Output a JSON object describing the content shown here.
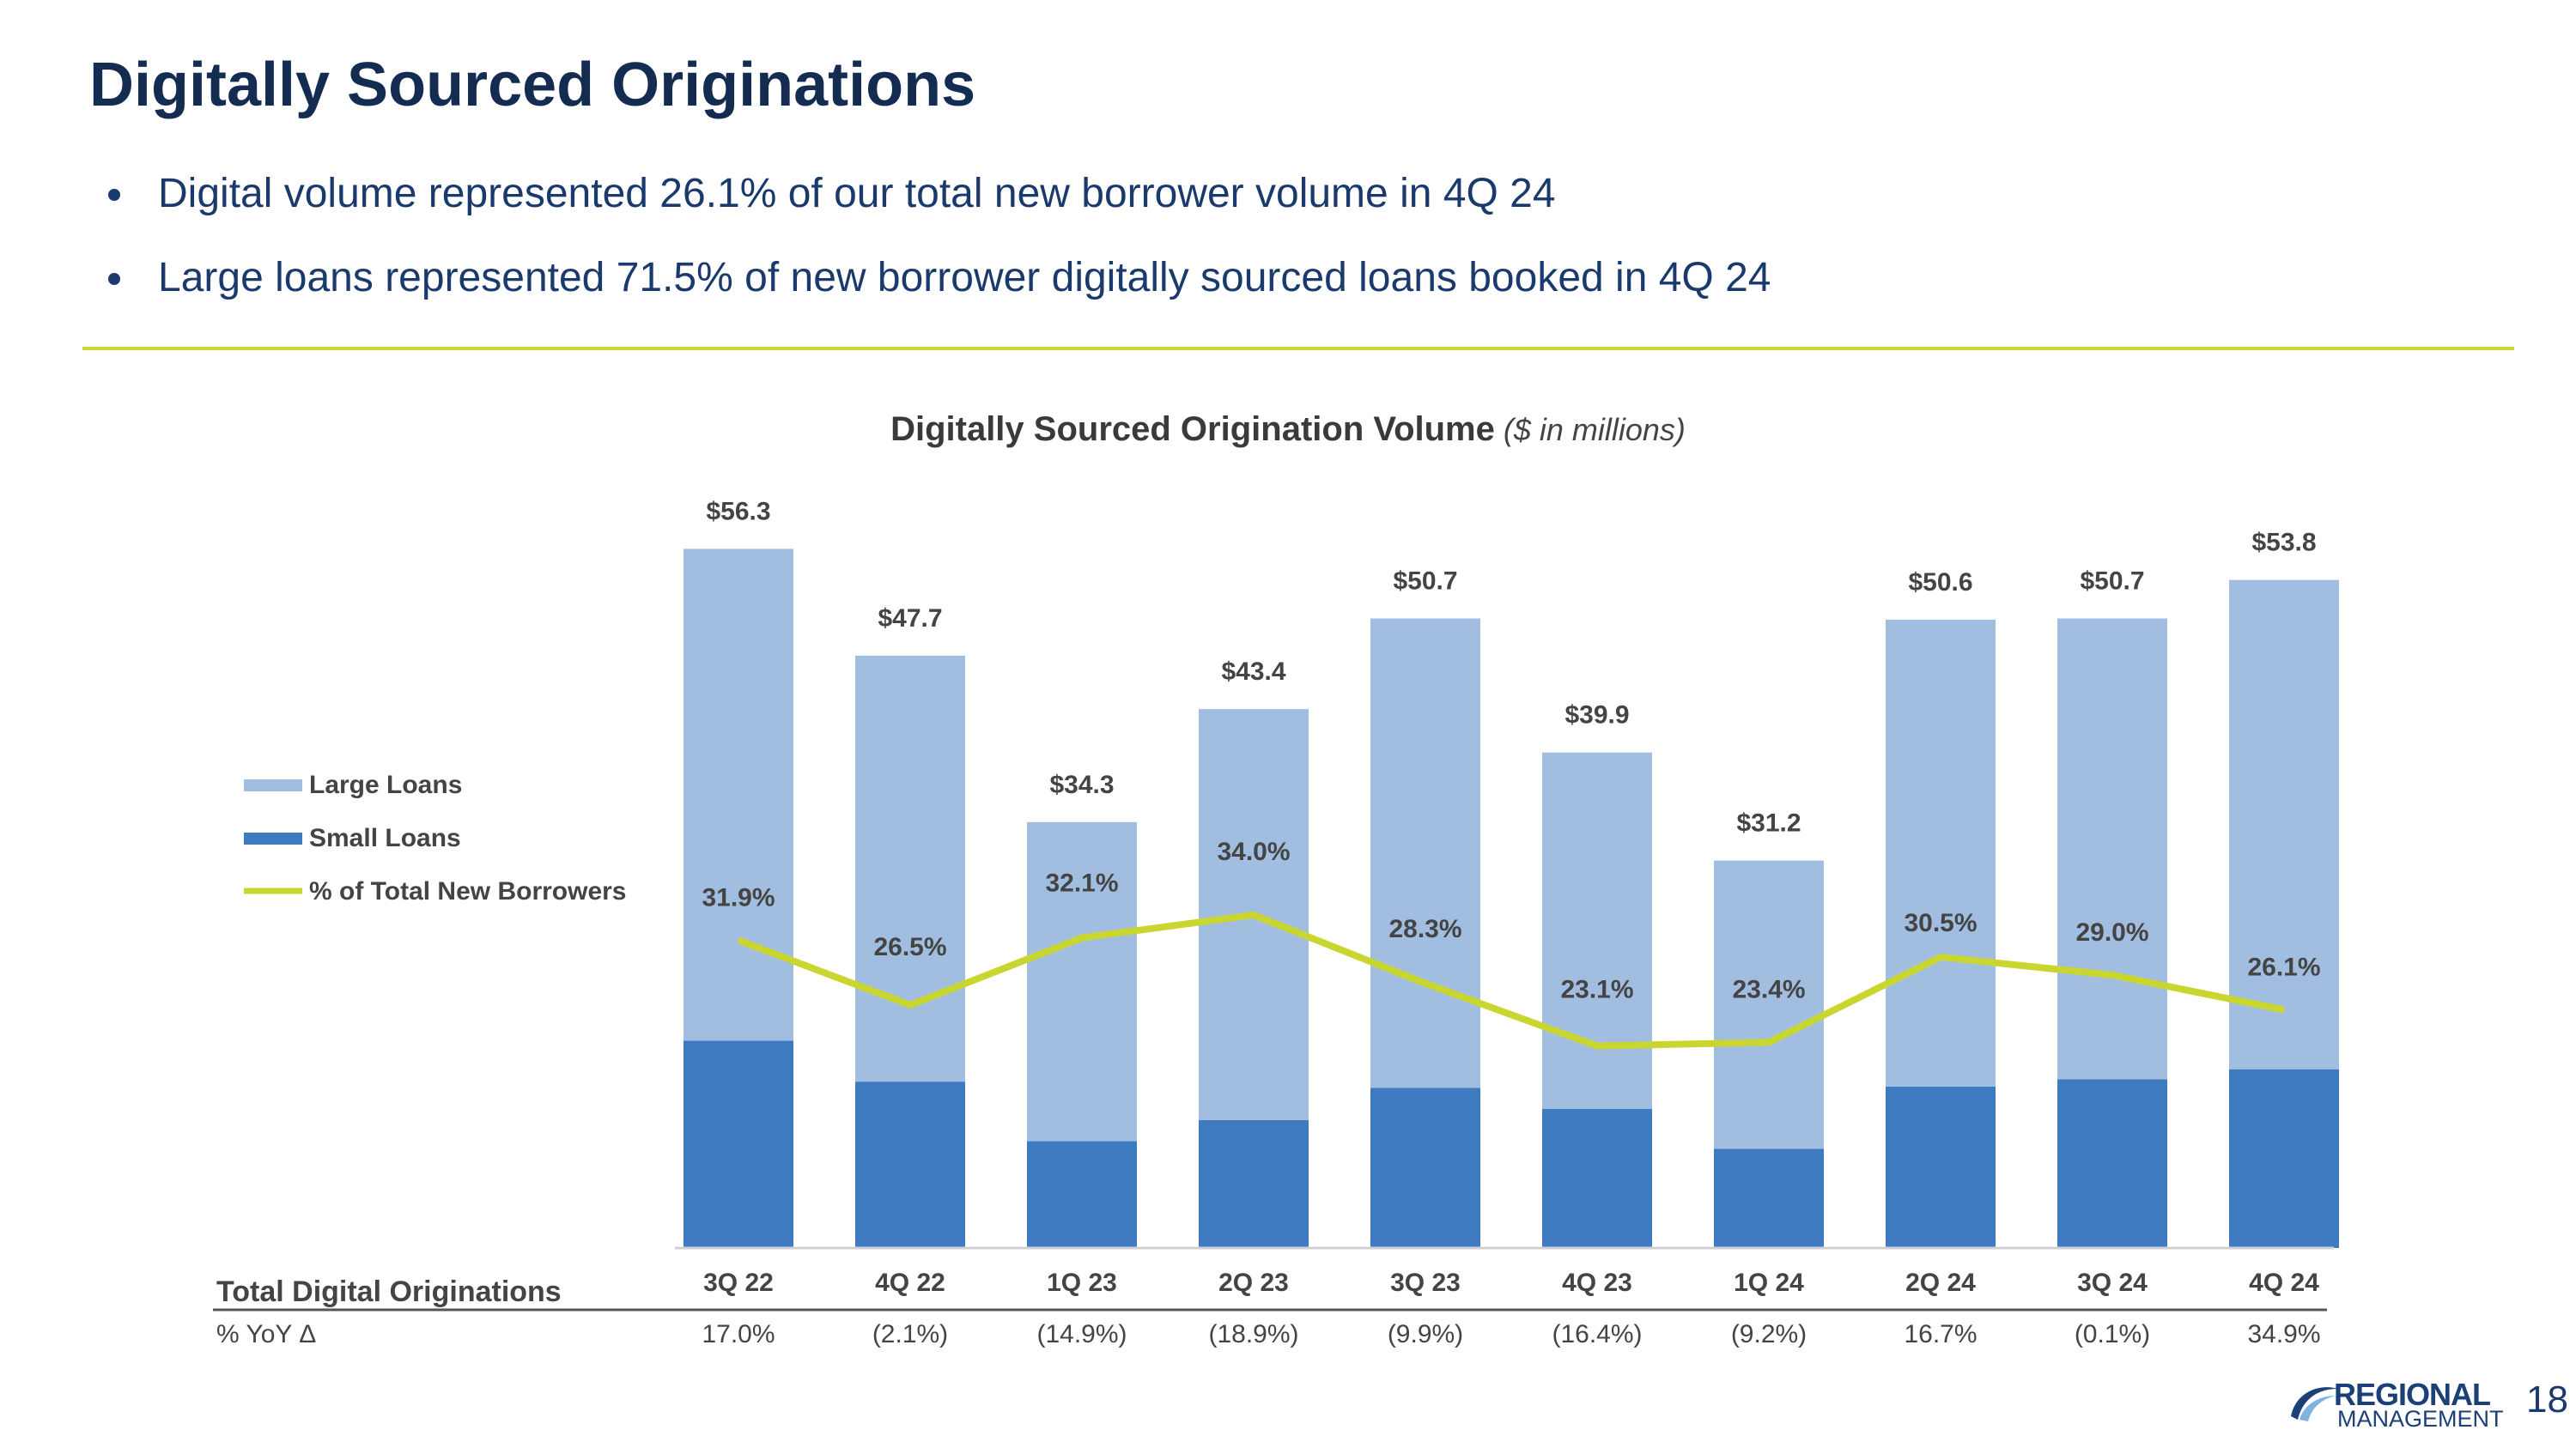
{
  "header": {
    "title": "Digitally Sourced Originations",
    "bullets": [
      "Digital volume represented 26.1% of our total new borrower volume in 4Q 24",
      "Large loans represented 71.5% of new borrower digitally sourced loans booked in 4Q 24"
    ]
  },
  "chart_title": {
    "main": "Digitally Sourced Origination Volume",
    "unit": "($ in millions)"
  },
  "chart_data": {
    "type": "bar",
    "stacked": true,
    "categories": [
      "3Q 22",
      "4Q 22",
      "1Q 23",
      "2Q 23",
      "3Q 23",
      "4Q 23",
      "1Q 24",
      "2Q 24",
      "3Q 24",
      "4Q 24"
    ],
    "series": [
      {
        "name": "Small Loans",
        "values": [
          16.7,
          13.4,
          8.6,
          10.3,
          12.9,
          11.2,
          8.0,
          13.0,
          13.6,
          14.4
        ],
        "color": "#3f7bc1"
      },
      {
        "name": "Large Loans",
        "values": [
          39.6,
          34.3,
          25.7,
          33.1,
          37.8,
          28.7,
          23.2,
          37.6,
          37.1,
          39.4
        ],
        "color": "#a1bde0"
      }
    ],
    "line_series": {
      "name": "% of Total New Borrowers",
      "values": [
        31.9,
        26.5,
        32.1,
        34.0,
        28.3,
        23.1,
        23.4,
        30.5,
        29.0,
        26.1
      ],
      "labels": [
        "31.9%",
        "26.5%",
        "32.1%",
        "34.0%",
        "28.3%",
        "23.1%",
        "23.4%",
        "30.5%",
        "29.0%",
        "26.1%"
      ],
      "color": "#c9d630"
    },
    "totals": [
      56.3,
      47.7,
      34.3,
      43.4,
      50.7,
      39.9,
      31.2,
      50.6,
      50.7,
      53.8
    ],
    "total_labels": [
      "$56.3",
      "$47.7",
      "$34.3",
      "$43.4",
      "$50.7",
      "$39.9",
      "$31.2",
      "$50.6",
      "$50.7",
      "$53.8"
    ],
    "ylim": [
      0,
      60
    ],
    "legend_position": "left",
    "table": {
      "row_label": "Total Digital Originations",
      "yoy_label": "% YoY Δ",
      "yoy_values": [
        "17.0%",
        "(2.1%)",
        "(14.9%)",
        "(18.9%)",
        "(9.9%)",
        "(16.4%)",
        "(9.2%)",
        "16.7%",
        "(0.1%)",
        "34.9%"
      ]
    }
  },
  "footer": {
    "logo_line1": "REGIONAL",
    "logo_line2": "MANAGEMENT",
    "page_number": "18"
  }
}
